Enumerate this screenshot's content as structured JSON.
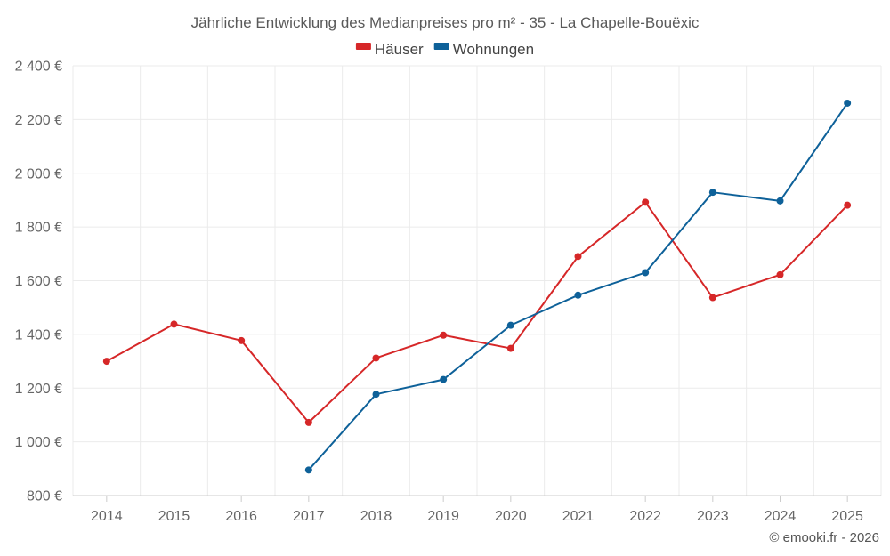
{
  "chart_data": {
    "type": "line",
    "title": "Jährliche Entwicklung des Medianpreises pro m² - 35 - La Chapelle-Bouëxic",
    "categories": [
      "2014",
      "2015",
      "2016",
      "2017",
      "2018",
      "2019",
      "2020",
      "2021",
      "2022",
      "2023",
      "2024",
      "2025"
    ],
    "series": [
      {
        "name": "Häuser",
        "color": "#d62728",
        "values": [
          1300,
          1438,
          1377,
          1072,
          1312,
          1397,
          1348,
          1690,
          1892,
          1537,
          1622,
          1881
        ]
      },
      {
        "name": "Wohnungen",
        "color": "#0e6199",
        "values": [
          null,
          null,
          null,
          895,
          1177,
          1232,
          1434,
          1546,
          1630,
          1929,
          1897,
          2261
        ]
      }
    ],
    "ylim": [
      800,
      2400
    ],
    "yticks": [
      800,
      1000,
      1200,
      1400,
      1600,
      1800,
      2000,
      2200,
      2400
    ],
    "ytick_labels": [
      "800 €",
      "1 000 €",
      "1 200 €",
      "1 400 €",
      "1 600 €",
      "1 800 €",
      "2 000 €",
      "2 200 €",
      "2 400 €"
    ],
    "xlabel": "",
    "ylabel": "",
    "grid": true,
    "legend_position": "top-center",
    "credit": "© emooki.fr - 2026"
  }
}
